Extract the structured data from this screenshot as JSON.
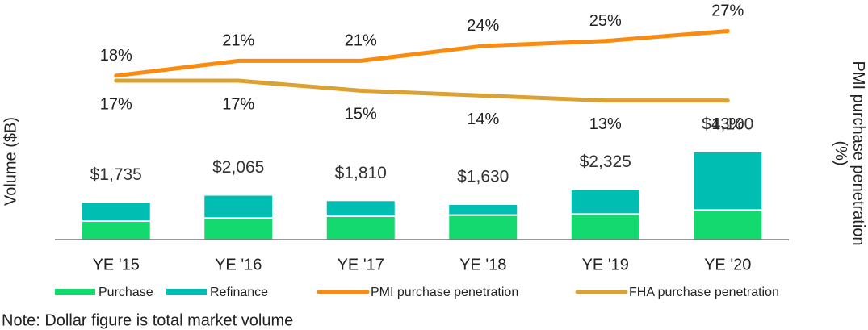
{
  "chart_data": {
    "type": "stacked_bar_line",
    "y_label": "Volume ($B)",
    "y2_label": "PMI purchase penetration (%)",
    "note": "Note: Dollar figure is total market volume",
    "categories": [
      "YE '15",
      "YE '16",
      "YE '17",
      "YE '18",
      "YE '19",
      "YE '20"
    ],
    "series": [
      {
        "name": "Purchase",
        "color": "#14d96e",
        "kind": "bar",
        "values": [
          870,
          1015,
          1100,
          1150,
          1200,
          1390
        ]
      },
      {
        "name": "Refinance",
        "color": "#00bfb2",
        "kind": "bar",
        "values": [
          865,
          1050,
          710,
          480,
          1125,
          2710
        ]
      },
      {
        "name": "PMI purchase penetration",
        "color": "#f98c10",
        "kind": "line",
        "axis": "y2",
        "values": [
          18,
          21,
          21,
          24,
          25,
          27
        ],
        "value_labels": [
          "18%",
          "21%",
          "21%",
          "24%",
          "25%",
          "27%"
        ]
      },
      {
        "name": "FHA purchase penetration",
        "color": "#dba133",
        "kind": "line",
        "axis": "y2",
        "values": [
          17,
          17,
          15,
          14,
          13,
          13
        ],
        "value_labels": [
          "17%",
          "17%",
          "15%",
          "14%",
          "13%",
          "13%"
        ]
      }
    ],
    "totals": [
      1735,
      2065,
      1810,
      1630,
      2325,
      4100
    ],
    "total_labels": [
      "$1,735",
      "$2,065",
      "$1,810",
      "$1,630",
      "$2,325",
      "$4,100"
    ],
    "ylim": [
      0,
      10500
    ],
    "y2lim": [
      -15,
      30
    ]
  }
}
